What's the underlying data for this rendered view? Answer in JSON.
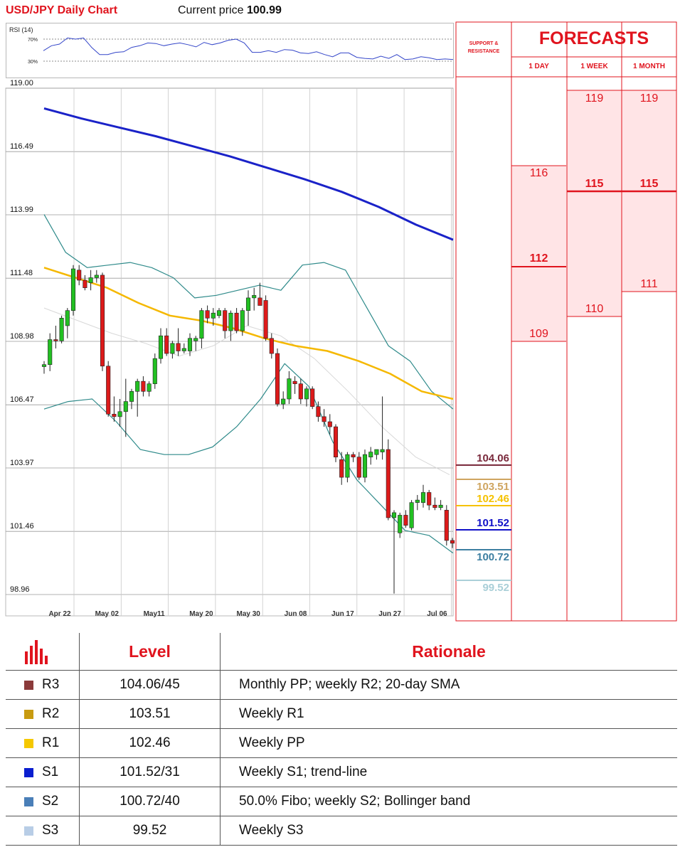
{
  "header": {
    "title": "USD/JPY Daily Chart",
    "current_price_label": "Current price",
    "current_price": "100.99"
  },
  "rsi": {
    "title": "RSI (14)",
    "levels": [
      "70%",
      "30%"
    ]
  },
  "chart_data": {
    "type": "line",
    "title": "USD/JPY Daily Chart",
    "y_ticks": [
      "119.00",
      "116.49",
      "113.99",
      "111.48",
      "108.98",
      "106.47",
      "103.97",
      "101.46",
      "98.96"
    ],
    "ylim": [
      98.96,
      119.0
    ],
    "x_ticks": [
      "Apr 22",
      "May 02",
      "May11",
      "May 20",
      "May 30",
      "Jun 08",
      "Jun 17",
      "Jun 27",
      "Jul 06"
    ],
    "grid": true,
    "candles": [
      {
        "o": 107.98,
        "h": 108.2,
        "l": 107.7,
        "c": 108.06
      },
      {
        "o": 108.06,
        "h": 109.3,
        "l": 107.8,
        "c": 109.05
      },
      {
        "o": 109.05,
        "h": 109.6,
        "l": 108.7,
        "c": 109.0
      },
      {
        "o": 109.0,
        "h": 110.0,
        "l": 108.9,
        "c": 109.9
      },
      {
        "o": 109.6,
        "h": 110.3,
        "l": 109.1,
        "c": 110.2
      },
      {
        "o": 110.2,
        "h": 112.0,
        "l": 110.0,
        "c": 111.85
      },
      {
        "o": 111.8,
        "h": 112.0,
        "l": 111.2,
        "c": 111.4
      },
      {
        "o": 111.4,
        "h": 111.6,
        "l": 111.0,
        "c": 111.1
      },
      {
        "o": 111.3,
        "h": 111.8,
        "l": 111.0,
        "c": 111.5
      },
      {
        "o": 111.5,
        "h": 111.8,
        "l": 111.3,
        "c": 111.6
      },
      {
        "o": 111.6,
        "h": 111.7,
        "l": 107.8,
        "c": 108.0
      },
      {
        "o": 108.0,
        "h": 108.2,
        "l": 106.0,
        "c": 106.1
      },
      {
        "o": 106.1,
        "h": 106.8,
        "l": 105.8,
        "c": 106.0
      },
      {
        "o": 106.0,
        "h": 106.7,
        "l": 105.6,
        "c": 106.2
      },
      {
        "o": 106.2,
        "h": 107.5,
        "l": 105.2,
        "c": 106.6
      },
      {
        "o": 106.6,
        "h": 107.1,
        "l": 106.3,
        "c": 107.0
      },
      {
        "o": 107.0,
        "h": 107.5,
        "l": 106.0,
        "c": 107.4
      },
      {
        "o": 107.4,
        "h": 107.6,
        "l": 106.8,
        "c": 107.0
      },
      {
        "o": 107.0,
        "h": 107.4,
        "l": 106.8,
        "c": 107.3
      },
      {
        "o": 107.3,
        "h": 108.5,
        "l": 107.1,
        "c": 108.3
      },
      {
        "o": 108.3,
        "h": 109.5,
        "l": 108.1,
        "c": 109.2
      },
      {
        "o": 109.2,
        "h": 109.5,
        "l": 108.4,
        "c": 108.5
      },
      {
        "o": 108.5,
        "h": 109.0,
        "l": 108.3,
        "c": 108.9
      },
      {
        "o": 108.9,
        "h": 109.5,
        "l": 108.4,
        "c": 108.6
      },
      {
        "o": 108.6,
        "h": 108.9,
        "l": 108.5,
        "c": 108.7
      },
      {
        "o": 108.6,
        "h": 109.3,
        "l": 108.4,
        "c": 109.1
      },
      {
        "o": 109.0,
        "h": 109.2,
        "l": 108.6,
        "c": 109.1
      },
      {
        "o": 109.1,
        "h": 110.3,
        "l": 108.7,
        "c": 110.2
      },
      {
        "o": 110.2,
        "h": 110.4,
        "l": 109.7,
        "c": 109.9
      },
      {
        "o": 109.9,
        "h": 110.3,
        "l": 109.6,
        "c": 110.1
      },
      {
        "o": 110.0,
        "h": 110.3,
        "l": 109.9,
        "c": 110.2
      },
      {
        "o": 110.2,
        "h": 110.3,
        "l": 109.1,
        "c": 109.4
      },
      {
        "o": 109.4,
        "h": 110.2,
        "l": 109.0,
        "c": 110.1
      },
      {
        "o": 110.1,
        "h": 110.3,
        "l": 109.3,
        "c": 109.4
      },
      {
        "o": 109.4,
        "h": 110.3,
        "l": 109.2,
        "c": 110.2
      },
      {
        "o": 110.2,
        "h": 111.0,
        "l": 109.6,
        "c": 110.7
      },
      {
        "o": 110.7,
        "h": 111.1,
        "l": 110.2,
        "c": 110.8
      },
      {
        "o": 110.7,
        "h": 111.3,
        "l": 110.5,
        "c": 110.4
      },
      {
        "o": 110.6,
        "h": 110.8,
        "l": 109.0,
        "c": 109.1
      },
      {
        "o": 109.1,
        "h": 109.3,
        "l": 108.3,
        "c": 108.5
      },
      {
        "o": 108.5,
        "h": 108.7,
        "l": 106.4,
        "c": 106.5
      },
      {
        "o": 106.5,
        "h": 107.0,
        "l": 106.3,
        "c": 106.7
      },
      {
        "o": 106.7,
        "h": 107.8,
        "l": 106.5,
        "c": 107.5
      },
      {
        "o": 107.4,
        "h": 107.6,
        "l": 106.9,
        "c": 107.3
      },
      {
        "o": 107.3,
        "h": 107.5,
        "l": 106.5,
        "c": 106.7
      },
      {
        "o": 106.7,
        "h": 107.2,
        "l": 106.4,
        "c": 107.1
      },
      {
        "o": 107.1,
        "h": 107.2,
        "l": 106.3,
        "c": 106.4
      },
      {
        "o": 106.4,
        "h": 106.6,
        "l": 105.8,
        "c": 106.0
      },
      {
        "o": 106.0,
        "h": 106.3,
        "l": 105.6,
        "c": 105.8
      },
      {
        "o": 105.8,
        "h": 106.1,
        "l": 105.3,
        "c": 105.6
      },
      {
        "o": 105.6,
        "h": 105.7,
        "l": 104.2,
        "c": 104.4
      },
      {
        "o": 104.3,
        "h": 104.6,
        "l": 103.3,
        "c": 103.6
      },
      {
        "o": 103.6,
        "h": 104.6,
        "l": 103.4,
        "c": 104.5
      },
      {
        "o": 104.5,
        "h": 104.6,
        "l": 104.2,
        "c": 104.4
      },
      {
        "o": 104.4,
        "h": 104.6,
        "l": 103.5,
        "c": 103.6
      },
      {
        "o": 103.6,
        "h": 104.7,
        "l": 103.4,
        "c": 104.5
      },
      {
        "o": 104.4,
        "h": 104.8,
        "l": 104.1,
        "c": 104.6
      },
      {
        "o": 104.5,
        "h": 104.7,
        "l": 104.3,
        "c": 104.7
      },
      {
        "o": 104.6,
        "h": 106.8,
        "l": 104.3,
        "c": 104.7
      },
      {
        "o": 104.7,
        "h": 105.1,
        "l": 101.9,
        "c": 102.0
      },
      {
        "o": 102.0,
        "h": 102.3,
        "l": 99.0,
        "c": 102.2
      },
      {
        "o": 101.4,
        "h": 102.2,
        "l": 101.2,
        "c": 102.1
      },
      {
        "o": 102.1,
        "h": 102.3,
        "l": 101.6,
        "c": 101.7
      },
      {
        "o": 101.6,
        "h": 102.7,
        "l": 101.5,
        "c": 102.6
      },
      {
        "o": 102.6,
        "h": 102.9,
        "l": 102.3,
        "c": 102.7
      },
      {
        "o": 102.6,
        "h": 103.3,
        "l": 102.4,
        "c": 103.0
      },
      {
        "o": 103.0,
        "h": 103.1,
        "l": 102.3,
        "c": 102.5
      },
      {
        "o": 102.5,
        "h": 102.8,
        "l": 102.3,
        "c": 102.4
      },
      {
        "o": 102.4,
        "h": 102.7,
        "l": 102.3,
        "c": 102.5
      },
      {
        "o": 102.3,
        "h": 102.5,
        "l": 100.9,
        "c": 101.1
      },
      {
        "o": 101.1,
        "h": 101.2,
        "l": 100.8,
        "c": 100.99
      }
    ],
    "sma200": [
      118.2,
      117.8,
      117.45,
      117.1,
      116.7,
      116.3,
      115.85,
      115.4,
      114.9,
      114.3,
      113.6,
      113.0
    ],
    "sma50": [
      111.9,
      111.5,
      111.1,
      110.5,
      110.0,
      109.8,
      109.5,
      109.1,
      108.8,
      108.6,
      108.2,
      107.7,
      107.0,
      106.7
    ],
    "sma20": [
      110.3,
      109.8,
      109.3,
      108.9,
      108.4,
      108.8,
      109.6,
      109.2,
      108.3,
      107.0,
      105.6,
      104.4,
      103.7
    ],
    "bb_upper": [
      114.0,
      112.5,
      111.9,
      112.0,
      112.1,
      111.9,
      111.5,
      110.7,
      110.8,
      111.0,
      111.2,
      111.0,
      112.0,
      112.1,
      111.8,
      110.3,
      108.8,
      108.2,
      107.0,
      106.3
    ],
    "bb_lower": [
      106.3,
      106.6,
      106.7,
      105.8,
      104.7,
      104.5,
      104.5,
      104.8,
      105.6,
      106.7,
      108.1,
      107.2,
      105.0,
      103.5,
      102.5,
      101.5,
      101.3,
      100.6
    ],
    "levels": [
      {
        "name": "R3",
        "value": "104.06",
        "color": "#7a2a3c"
      },
      {
        "name": "R2",
        "value": "103.51",
        "color": "#cfa560"
      },
      {
        "name": "R1",
        "value": "102.46",
        "color": "#f5c200"
      },
      {
        "name": "S1",
        "value": "101.52",
        "color": "#1010c8"
      },
      {
        "name": "S2",
        "value": "100.72",
        "color": "#3d7fa1"
      },
      {
        "name": "S3",
        "value": "99.52",
        "color": "#aacfd8"
      }
    ]
  },
  "forecasts": {
    "support_resistance_label": "SUPPORT & RESISTANCE",
    "title": "FORECASTS",
    "columns": [
      {
        "label": "1 DAY",
        "values": [
          {
            "text": "116",
            "bold": false
          },
          {
            "text": "112",
            "bold": true
          },
          {
            "text": "109",
            "bold": false
          }
        ]
      },
      {
        "label": "1 WEEK",
        "values": [
          {
            "text": "119",
            "bold": false
          },
          {
            "text": "115",
            "bold": true
          },
          {
            "text": "110",
            "bold": false
          }
        ]
      },
      {
        "label": "1 MONTH",
        "values": [
          {
            "text": "119",
            "bold": false
          },
          {
            "text": "115",
            "bold": true
          },
          {
            "text": "111",
            "bold": false
          }
        ]
      }
    ]
  },
  "table": {
    "header": {
      "level": "Level",
      "rationale": "Rationale"
    },
    "rows": [
      {
        "name": "R3",
        "level": "104.06/45",
        "rationale": "Monthly PP; weekly R2; 20-day SMA",
        "color": "#8b3a3a"
      },
      {
        "name": "R2",
        "level": "103.51",
        "rationale": "Weekly R1",
        "color": "#c89b10"
      },
      {
        "name": "R1",
        "level": "102.46",
        "rationale": "Weekly PP",
        "color": "#f5c800"
      },
      {
        "name": "S1",
        "level": "101.52/31",
        "rationale": "Weekly S1; trend-line",
        "color": "#0a1ecf"
      },
      {
        "name": "S2",
        "level": "100.72/40",
        "rationale": "50.0% Fibo; weekly S2; Bollinger band",
        "color": "#4a7fb8"
      },
      {
        "name": "S3",
        "level": "99.52",
        "rationale": "Weekly S3",
        "color": "#b8cde6"
      }
    ]
  }
}
